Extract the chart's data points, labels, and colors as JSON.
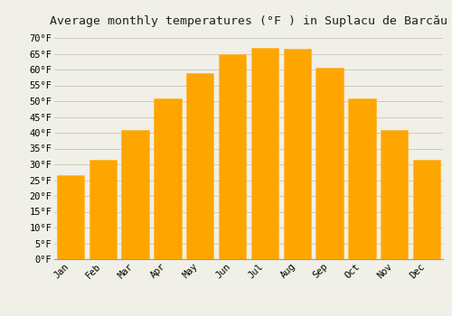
{
  "title": "Average monthly temperatures (°F ) in Suplacu de Barcău",
  "months": [
    "Jan",
    "Feb",
    "Mar",
    "Apr",
    "May",
    "Jun",
    "Jul",
    "Aug",
    "Sep",
    "Oct",
    "Nov",
    "Dec"
  ],
  "values": [
    26.5,
    31.5,
    41.0,
    51.0,
    59.0,
    65.0,
    67.0,
    66.5,
    60.5,
    51.0,
    41.0,
    31.5
  ],
  "bar_color": "#FFA500",
  "bar_edge_color": "#FFB733",
  "ylim": [
    0,
    72
  ],
  "yticks": [
    0,
    5,
    10,
    15,
    20,
    25,
    30,
    35,
    40,
    45,
    50,
    55,
    60,
    65,
    70
  ],
  "background_color": "#F0F0E8",
  "grid_color": "#CCCCBB",
  "title_fontsize": 9.5,
  "tick_fontsize": 7.5
}
